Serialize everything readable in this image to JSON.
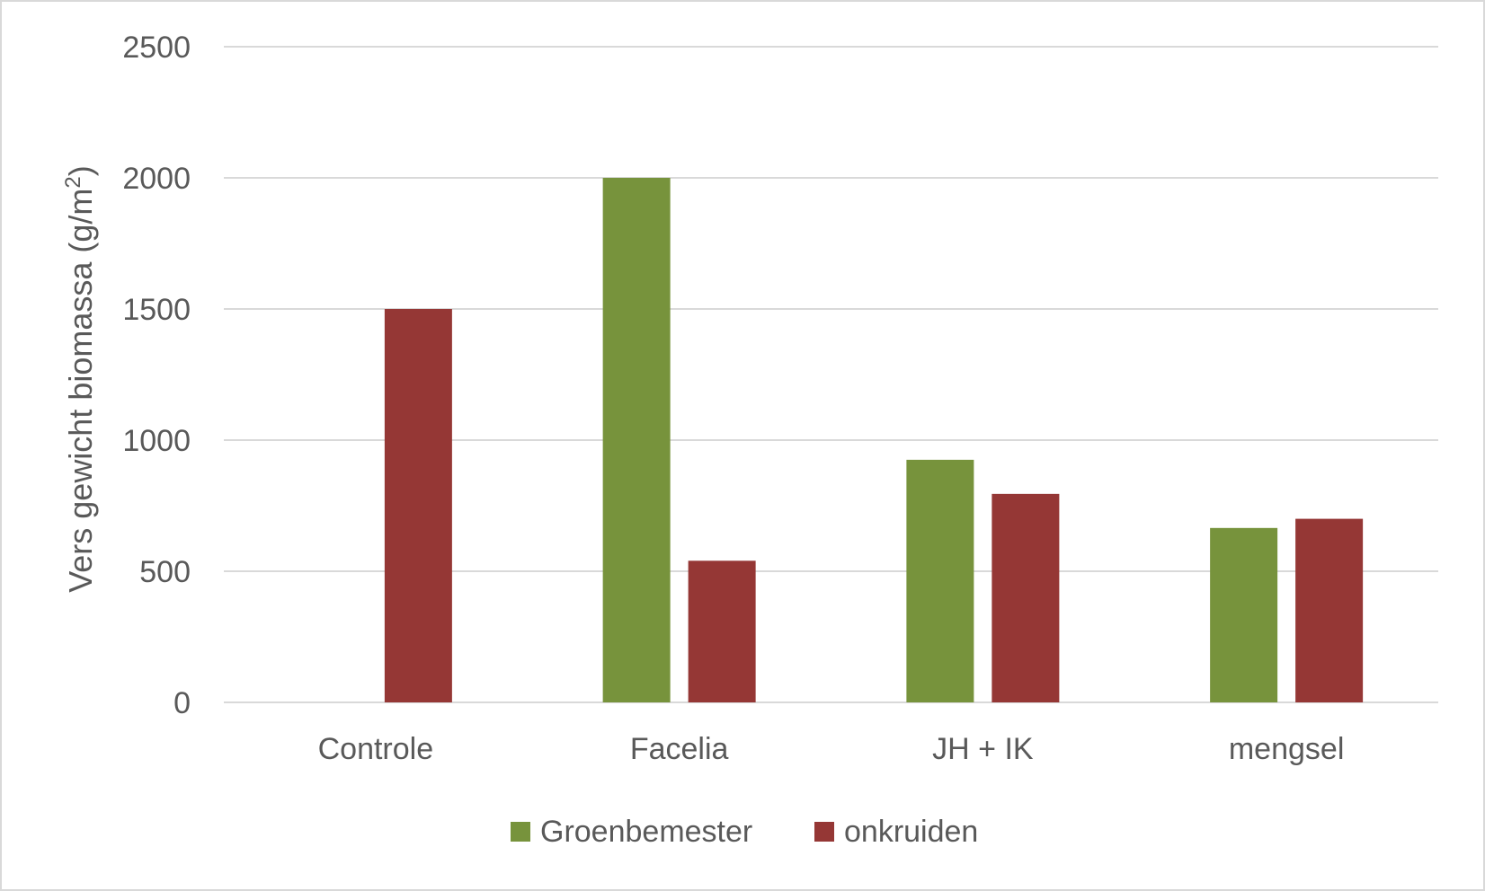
{
  "chart_data": {
    "type": "bar",
    "categories": [
      "Controle",
      "Facelia",
      "JH + IK",
      "mengsel"
    ],
    "series": [
      {
        "name": "Groenbemester",
        "color": "#77933c",
        "values": [
          0,
          2000,
          925,
          665
        ]
      },
      {
        "name": "onkruiden",
        "color": "#953735",
        "values": [
          1500,
          540,
          795,
          700
        ]
      }
    ],
    "title": "",
    "xlabel": "",
    "ylabel": "Vers gewicht biomassa (g/m",
    "ylabel_superscript": "2",
    "ylabel_suffix": ")",
    "ylim": [
      0,
      2500
    ],
    "yticks": [
      "0",
      "500",
      "1000",
      "1500",
      "2000",
      "2500"
    ],
    "grid": true,
    "legend_position": "bottom"
  }
}
